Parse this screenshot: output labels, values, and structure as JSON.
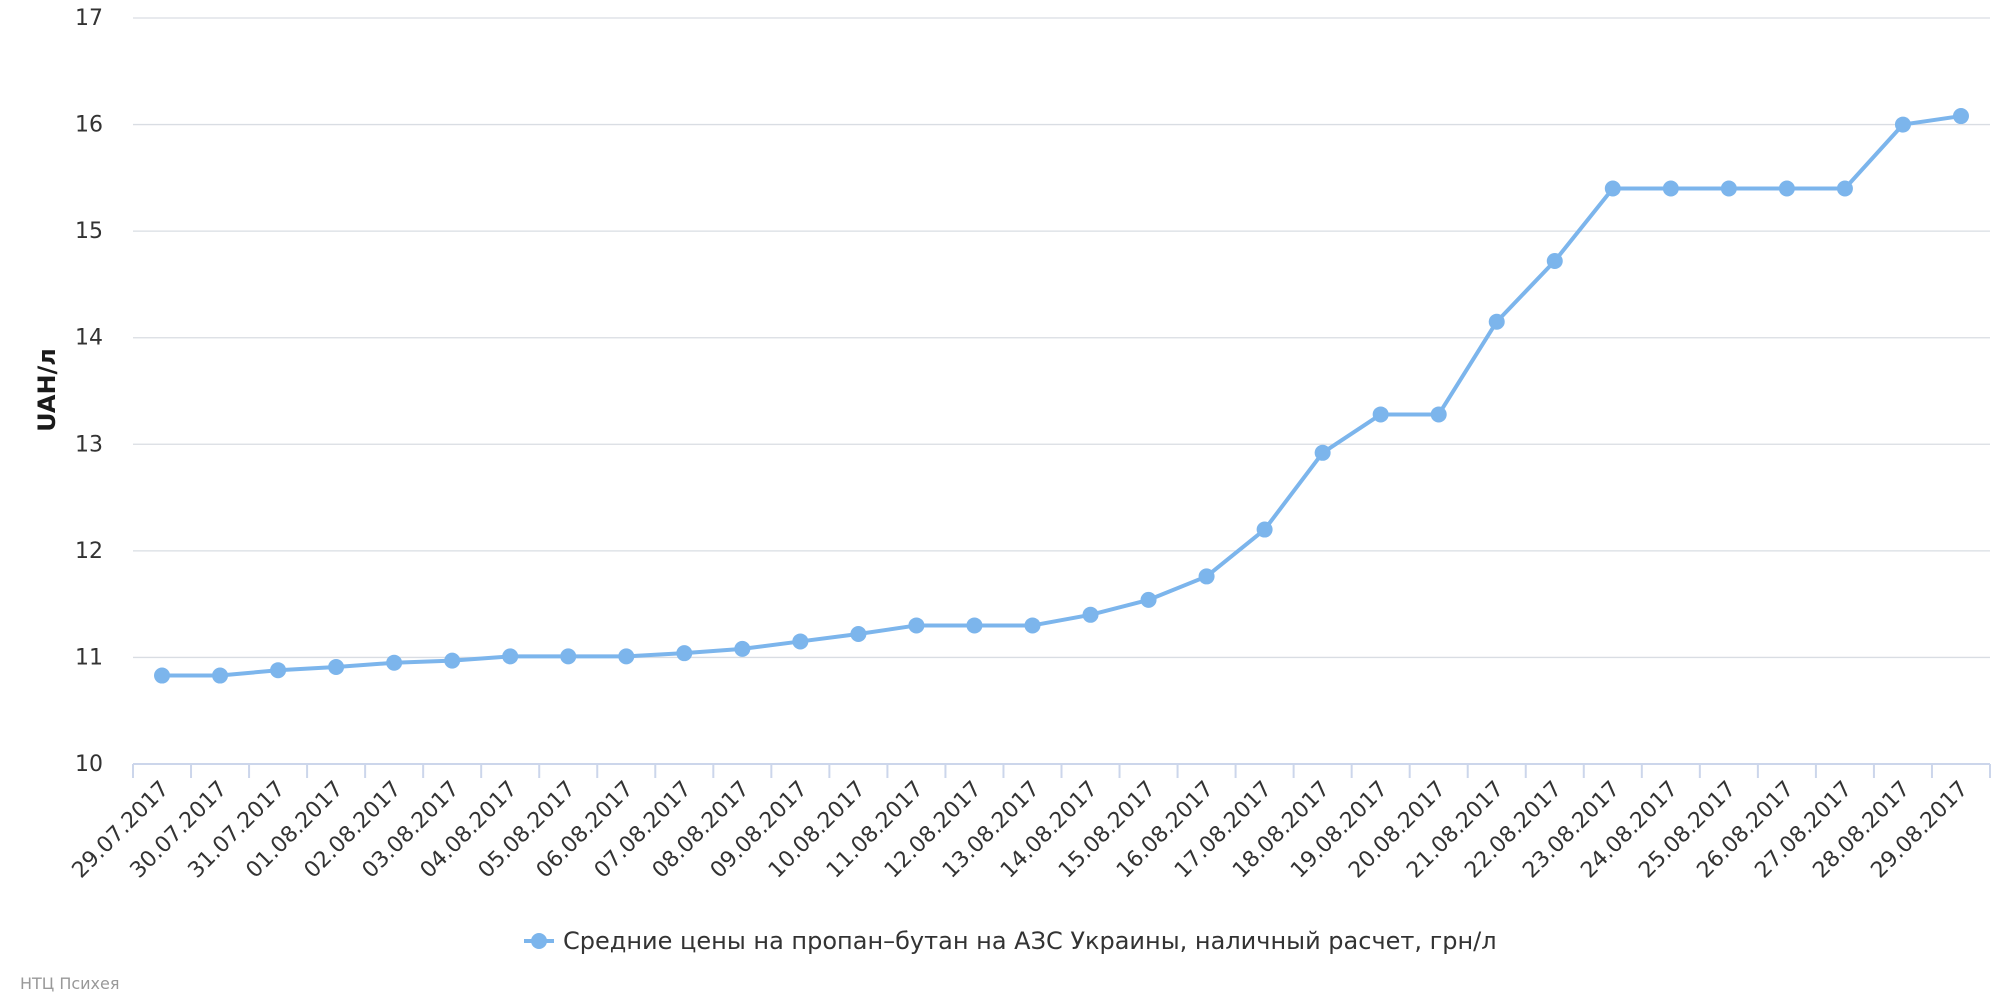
{
  "chart_data": {
    "type": "line",
    "title": "",
    "xlabel": "",
    "ylabel": "UAH/л",
    "ylim": [
      10,
      17
    ],
    "yticks": [
      10,
      11,
      12,
      13,
      14,
      15,
      16,
      17
    ],
    "grid": true,
    "legend_position": "bottom-center",
    "categories": [
      "29.07.2017",
      "30.07.2017",
      "31.07.2017",
      "01.08.2017",
      "02.08.2017",
      "03.08.2017",
      "04.08.2017",
      "05.08.2017",
      "06.08.2017",
      "07.08.2017",
      "08.08.2017",
      "09.08.2017",
      "10.08.2017",
      "11.08.2017",
      "12.08.2017",
      "13.08.2017",
      "14.08.2017",
      "15.08.2017",
      "16.08.2017",
      "17.08.2017",
      "18.08.2017",
      "19.08.2017",
      "20.08.2017",
      "21.08.2017",
      "22.08.2017",
      "23.08.2017",
      "24.08.2017",
      "25.08.2017",
      "26.08.2017",
      "27.08.2017",
      "28.08.2017",
      "29.08.2017"
    ],
    "series": [
      {
        "name": "Средние цены на пропан–бутан на АЗС Украины, наличный расчет, грн/л",
        "color": "#7cb5ec",
        "values": [
          10.83,
          10.83,
          10.88,
          10.91,
          10.95,
          10.97,
          11.01,
          11.01,
          11.01,
          11.04,
          11.08,
          11.15,
          11.22,
          11.3,
          11.3,
          11.3,
          11.4,
          11.54,
          11.76,
          12.2,
          12.92,
          13.28,
          13.28,
          14.15,
          14.72,
          15.4,
          15.4,
          15.4,
          15.4,
          15.4,
          16.0,
          16.08
        ]
      }
    ]
  },
  "credits": "НТЦ Психея"
}
